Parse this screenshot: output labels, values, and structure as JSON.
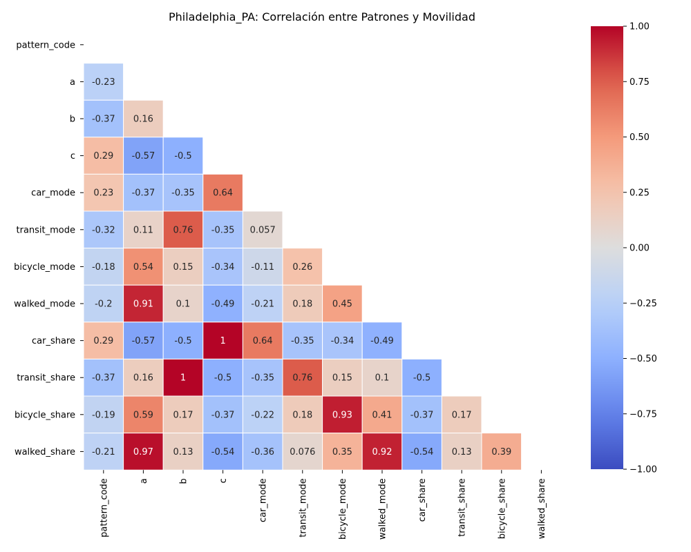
{
  "chart_data": {
    "type": "heatmap",
    "title": "Philadelphia_PA: Correlación entre Patrones y Movilidad",
    "xlabel": "",
    "ylabel": "",
    "labels": [
      "pattern_code",
      "a",
      "b",
      "c",
      "car_mode",
      "transit_mode",
      "bicycle_mode",
      "walked_mode",
      "car_share",
      "transit_share",
      "bicycle_share",
      "walked_share"
    ],
    "mask": "upper-triangle-including-diagonal",
    "values": [
      [
        null,
        null,
        null,
        null,
        null,
        null,
        null,
        null,
        null,
        null,
        null,
        null
      ],
      [
        -0.23,
        null,
        null,
        null,
        null,
        null,
        null,
        null,
        null,
        null,
        null,
        null
      ],
      [
        -0.37,
        0.16,
        null,
        null,
        null,
        null,
        null,
        null,
        null,
        null,
        null,
        null
      ],
      [
        0.29,
        -0.57,
        -0.5,
        null,
        null,
        null,
        null,
        null,
        null,
        null,
        null,
        null
      ],
      [
        0.23,
        -0.37,
        -0.35,
        0.64,
        null,
        null,
        null,
        null,
        null,
        null,
        null,
        null
      ],
      [
        -0.32,
        0.11,
        0.76,
        -0.35,
        0.057,
        null,
        null,
        null,
        null,
        null,
        null,
        null
      ],
      [
        -0.18,
        0.54,
        0.15,
        -0.34,
        -0.11,
        0.26,
        null,
        null,
        null,
        null,
        null,
        null
      ],
      [
        -0.2,
        0.91,
        0.1,
        -0.49,
        -0.21,
        0.18,
        0.45,
        null,
        null,
        null,
        null,
        null
      ],
      [
        0.29,
        -0.57,
        -0.5,
        1,
        0.64,
        -0.35,
        -0.34,
        -0.49,
        null,
        null,
        null,
        null
      ],
      [
        -0.37,
        0.16,
        1,
        -0.5,
        -0.35,
        0.76,
        0.15,
        0.1,
        -0.5,
        null,
        null,
        null
      ],
      [
        -0.19,
        0.59,
        0.17,
        -0.37,
        -0.22,
        0.18,
        0.93,
        0.41,
        -0.37,
        0.17,
        null,
        null
      ],
      [
        -0.21,
        0.97,
        0.13,
        -0.54,
        -0.36,
        0.076,
        0.35,
        0.92,
        -0.54,
        0.13,
        0.39,
        null
      ]
    ],
    "colormap": "coolwarm",
    "vmin": -1,
    "vmax": 1,
    "colorbar_ticks": [
      "1.00",
      "0.75",
      "0.50",
      "0.25",
      "0.00",
      "−0.25",
      "−0.50",
      "−0.75",
      "−1.00"
    ],
    "annotated": true,
    "grid_lines": "white",
    "colorbar_position": "right"
  }
}
